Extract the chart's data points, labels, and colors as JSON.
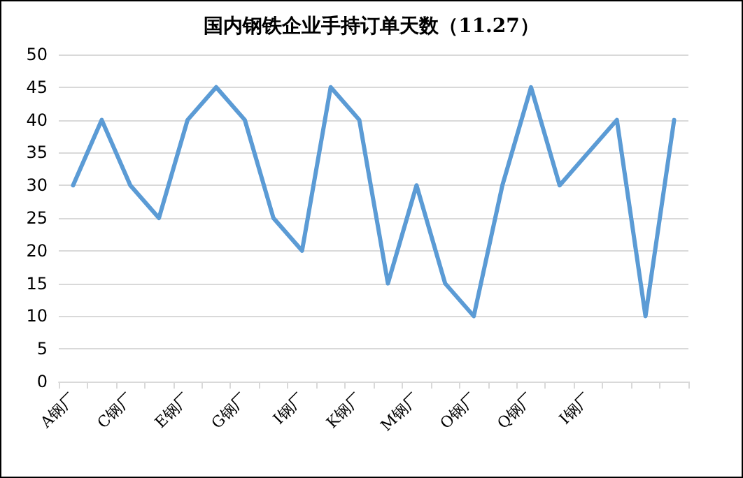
{
  "chart_data": {
    "type": "line",
    "title": "国内钢铁企业手持订单天数（11.27）",
    "categories": [
      "A钢厂",
      null,
      "C钢厂",
      null,
      "E钢厂",
      null,
      "G钢厂",
      null,
      "I钢厂",
      null,
      "K钢厂",
      null,
      "M钢厂",
      null,
      "O钢厂",
      null,
      "Q钢厂",
      null,
      "I钢厂",
      null,
      null,
      null
    ],
    "series": [
      {
        "color": "#5b9bd5",
        "values": [
          30,
          40,
          30,
          25,
          40,
          45,
          40,
          25,
          20,
          45,
          40,
          15,
          30,
          15,
          10,
          30,
          45,
          30,
          35,
          40,
          10,
          40
        ]
      }
    ],
    "ylim": [
      0,
      50
    ],
    "yticks": [
      0,
      5,
      10,
      15,
      20,
      25,
      30,
      35,
      40,
      45,
      50
    ],
    "grid": "y",
    "marker": "none",
    "line_style": "solid"
  }
}
